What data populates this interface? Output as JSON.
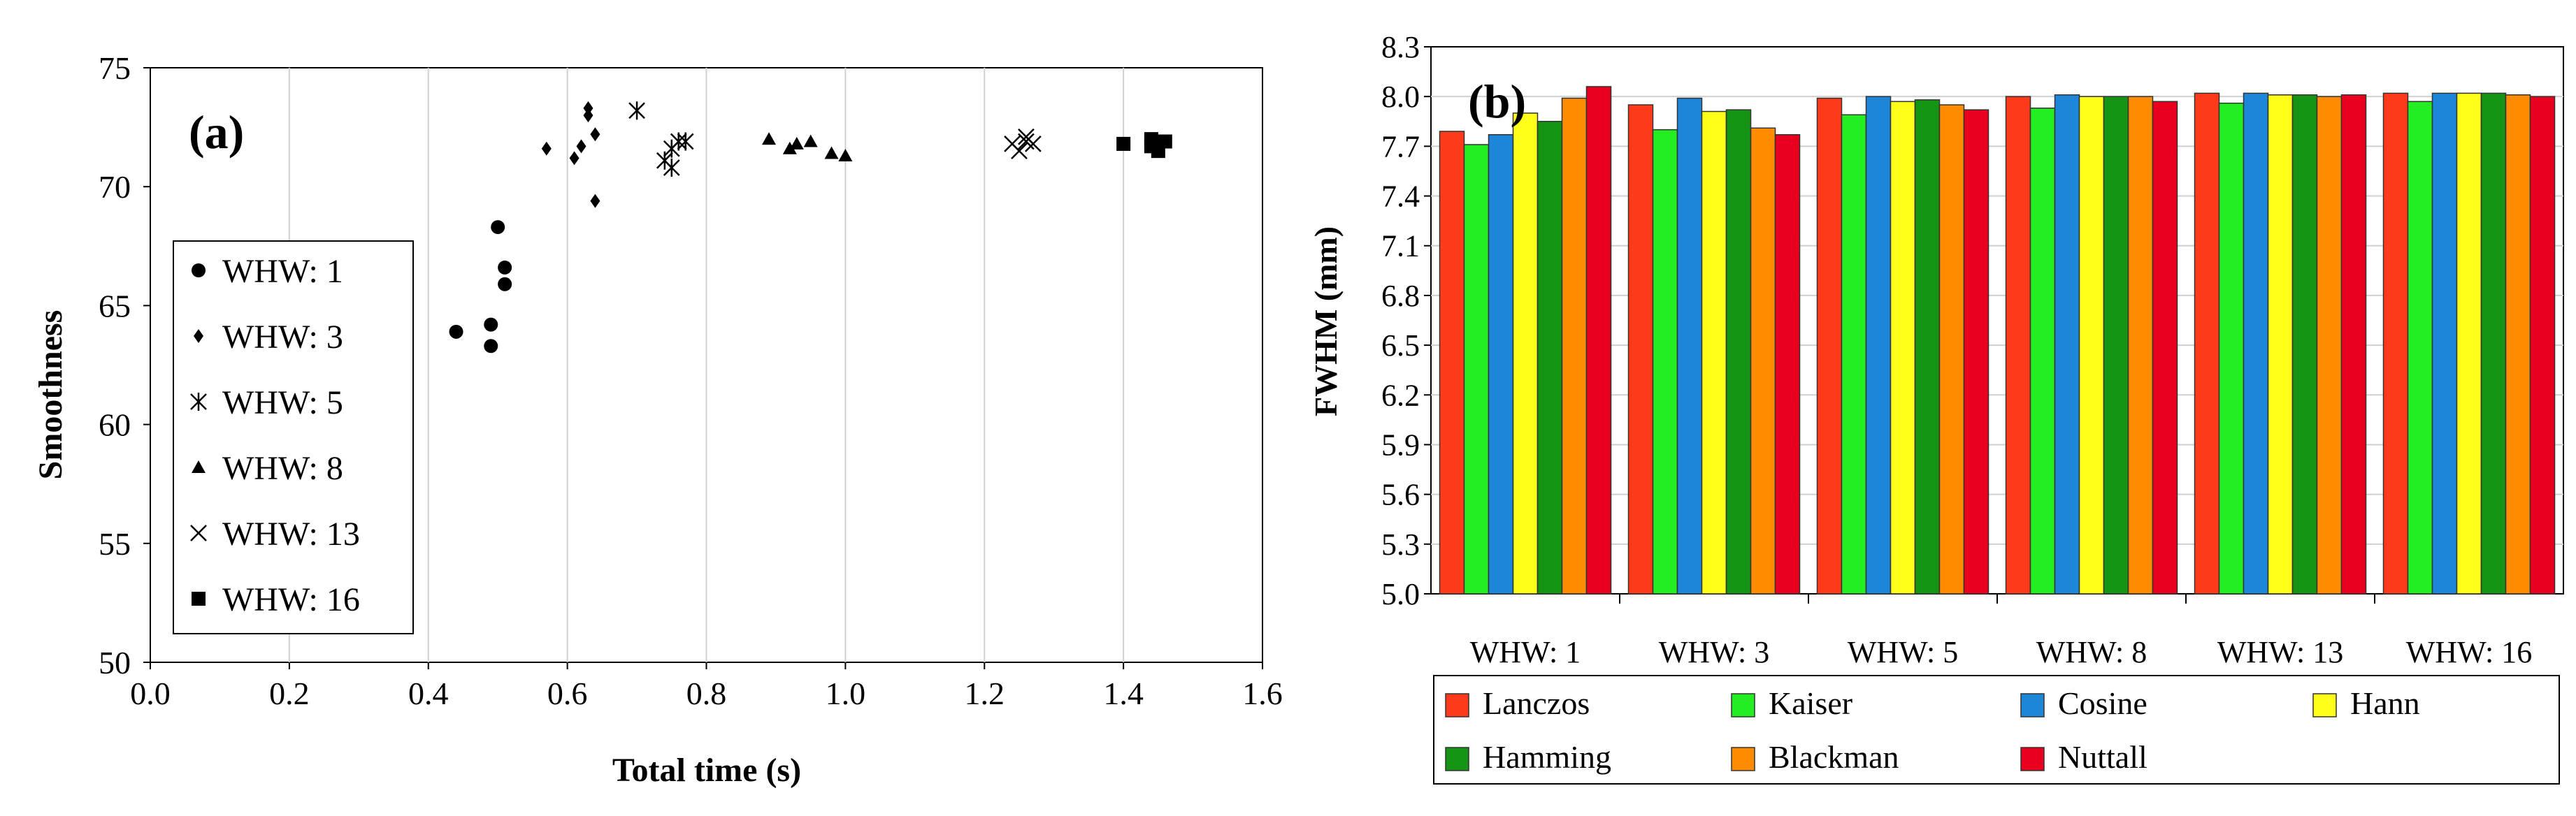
{
  "chart_data": [
    {
      "type": "scatter",
      "panel_label": "(a)",
      "xlabel": "Total time (s)",
      "ylabel": "Smoothness",
      "xlim": [
        0.0,
        1.6
      ],
      "ylim": [
        50,
        75
      ],
      "x_ticks": [
        "0.0",
        "0.2",
        "0.4",
        "0.6",
        "0.8",
        "1.0",
        "1.2",
        "1.4",
        "1.6"
      ],
      "y_ticks": [
        "50",
        "55",
        "60",
        "65",
        "70",
        "75"
      ],
      "grid": "vertical",
      "legend_position": "left",
      "series": [
        {
          "name": "WHW: 1",
          "marker": "circle",
          "points": [
            [
              0.44,
              63.9
            ],
            [
              0.49,
              64.2
            ],
            [
              0.49,
              63.3
            ],
            [
              0.5,
              68.3
            ],
            [
              0.51,
              66.6
            ],
            [
              0.51,
              65.9
            ]
          ]
        },
        {
          "name": "WHW: 3",
          "marker": "diamond",
          "points": [
            [
              0.57,
              71.6
            ],
            [
              0.61,
              71.2
            ],
            [
              0.62,
              71.7
            ],
            [
              0.63,
              73.0
            ],
            [
              0.63,
              73.3
            ],
            [
              0.64,
              72.2
            ],
            [
              0.64,
              69.4
            ]
          ]
        },
        {
          "name": "WHW: 5",
          "marker": "asterisk",
          "points": [
            [
              0.7,
              73.2
            ],
            [
              0.74,
              71.1
            ],
            [
              0.75,
              71.6
            ],
            [
              0.75,
              70.8
            ],
            [
              0.76,
              71.9
            ],
            [
              0.77,
              71.9
            ]
          ]
        },
        {
          "name": "WHW: 8",
          "marker": "triangle",
          "points": [
            [
              0.89,
              72.0
            ],
            [
              0.92,
              71.6
            ],
            [
              0.93,
              71.8
            ],
            [
              0.95,
              71.9
            ],
            [
              0.98,
              71.4
            ],
            [
              1.0,
              71.3
            ]
          ]
        },
        {
          "name": "WHW: 13",
          "marker": "x",
          "points": [
            [
              1.24,
              71.8
            ],
            [
              1.25,
              71.5
            ],
            [
              1.26,
              71.9
            ],
            [
              1.26,
              72.1
            ],
            [
              1.27,
              71.8
            ]
          ]
        },
        {
          "name": "WHW: 16",
          "marker": "square",
          "points": [
            [
              1.4,
              71.8
            ],
            [
              1.44,
              72.0
            ],
            [
              1.44,
              71.7
            ],
            [
              1.45,
              71.9
            ],
            [
              1.45,
              71.5
            ],
            [
              1.46,
              71.9
            ]
          ]
        }
      ]
    },
    {
      "type": "bar",
      "panel_label": "(b)",
      "ylabel": "FWHM (mm)",
      "ylim": [
        5.0,
        8.3
      ],
      "y_ticks": [
        "5.0",
        "5.3",
        "5.6",
        "5.9",
        "6.2",
        "6.5",
        "6.8",
        "7.1",
        "7.4",
        "7.7",
        "8.0",
        "8.3"
      ],
      "categories": [
        "WHW: 1",
        "WHW: 3",
        "WHW: 5",
        "WHW: 8",
        "WHW: 13",
        "WHW: 16"
      ],
      "legend_position": "bottom",
      "series": [
        {
          "name": "Lanczos",
          "color": "#ff3a1a",
          "values": [
            7.79,
            7.95,
            7.99,
            8.0,
            8.02,
            8.02
          ]
        },
        {
          "name": "Kaiser",
          "color": "#22ee22",
          "values": [
            7.71,
            7.8,
            7.89,
            7.93,
            7.96,
            7.97
          ]
        },
        {
          "name": "Cosine",
          "color": "#1e86d8",
          "values": [
            7.77,
            7.99,
            8.0,
            8.01,
            8.02,
            8.02
          ]
        },
        {
          "name": "Hann",
          "color": "#ffff1a",
          "values": [
            7.9,
            7.91,
            7.97,
            8.0,
            8.01,
            8.02
          ]
        },
        {
          "name": "Hamming",
          "color": "#159315",
          "values": [
            7.85,
            7.92,
            7.98,
            8.0,
            8.01,
            8.02
          ]
        },
        {
          "name": "Blackman",
          "color": "#ff8c00",
          "values": [
            7.99,
            7.81,
            7.95,
            8.0,
            8.0,
            8.01
          ]
        },
        {
          "name": "Nuttall",
          "color": "#e8001e",
          "values": [
            8.06,
            7.77,
            7.92,
            7.97,
            8.01,
            8.0
          ]
        }
      ]
    }
  ]
}
